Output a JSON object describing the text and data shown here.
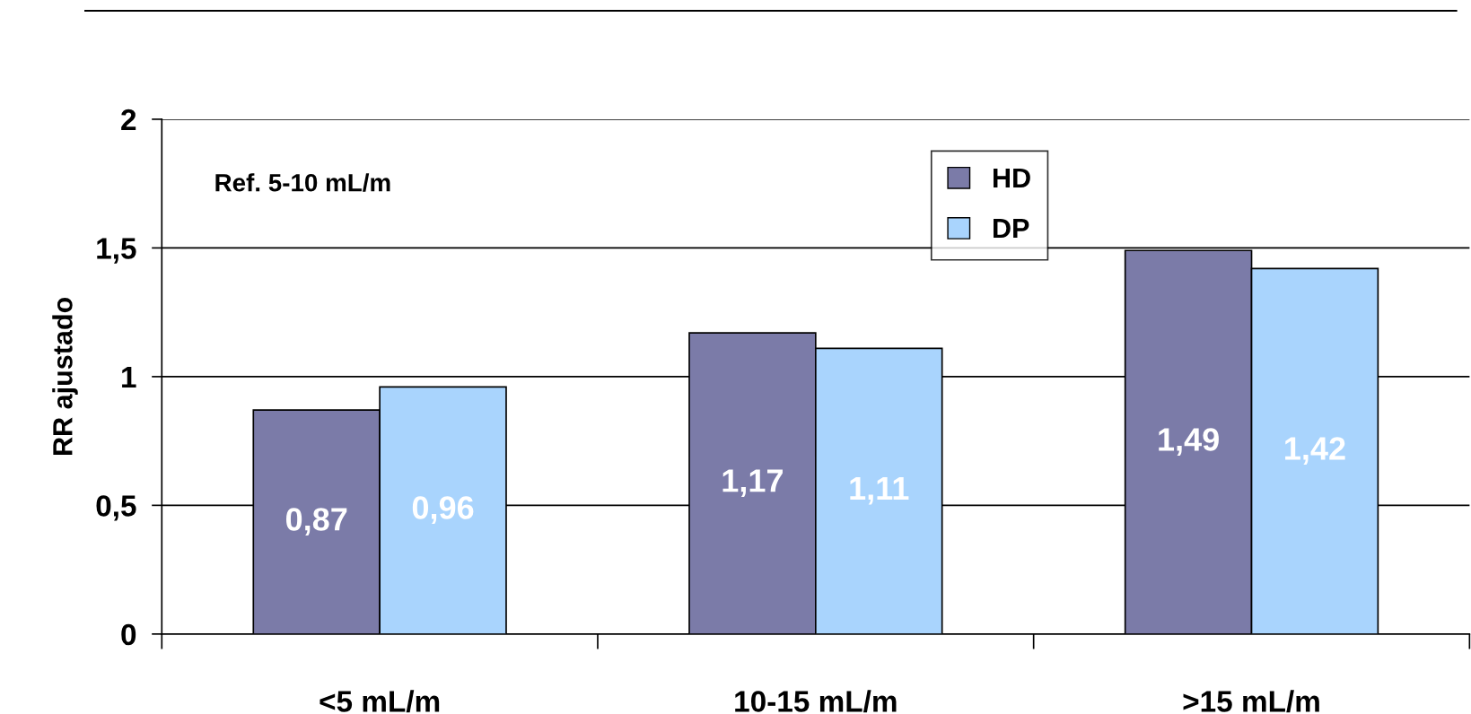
{
  "chart_data": {
    "type": "bar",
    "ylabel": "RR ajustado",
    "categories": [
      "<5 mL/m",
      "10-15 mL/m",
      ">15 mL/m"
    ],
    "series": [
      {
        "name": "HD",
        "color": "#7b7ba8",
        "values": [
          0.87,
          1.17,
          1.49
        ],
        "value_labels": [
          "0,87",
          "1,17",
          "1,49"
        ]
      },
      {
        "name": "DP",
        "color": "#a9d4fd",
        "values": [
          0.96,
          1.11,
          1.42
        ],
        "value_labels": [
          "0,96",
          "1,11",
          "1,42"
        ]
      }
    ],
    "ylim": [
      0,
      2
    ],
    "yticks": [
      0,
      {
        "value": 0.5,
        "label": "0,5"
      },
      1,
      {
        "value": 1.5,
        "label": "1,5"
      },
      2
    ],
    "grid": "y",
    "legend": "top",
    "annotations": [
      "Ref. 5-10 mL/m"
    ]
  }
}
